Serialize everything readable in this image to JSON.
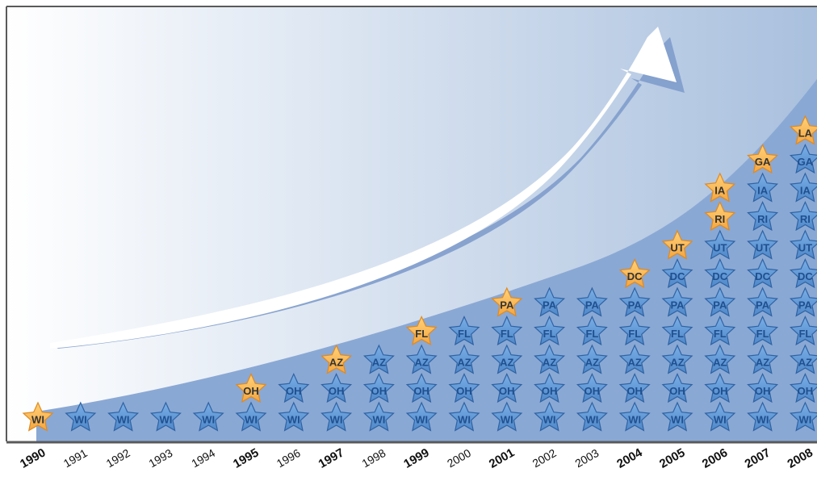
{
  "chart_data": {
    "type": "table",
    "x": [
      "1990",
      "1991",
      "1992",
      "1993",
      "1994",
      "1995",
      "1996",
      "1997",
      "1998",
      "1999",
      "2000",
      "2001",
      "2002",
      "2003",
      "2004",
      "2005",
      "2006",
      "2007",
      "2008"
    ],
    "bold_years": [
      "1990",
      "1995",
      "1997",
      "1999",
      "2001",
      "2004",
      "2005",
      "2006",
      "2007",
      "2008"
    ],
    "additions": [
      {
        "year": "1990",
        "state": "WI"
      },
      {
        "year": "1995",
        "state": "OH"
      },
      {
        "year": "1997",
        "state": "AZ"
      },
      {
        "year": "1999",
        "state": "FL"
      },
      {
        "year": "2001",
        "state": "PA"
      },
      {
        "year": "2004",
        "state": "DC"
      },
      {
        "year": "2005",
        "state": "UT"
      },
      {
        "year": "2006",
        "state": "RI"
      },
      {
        "year": "2006",
        "state": "IA"
      },
      {
        "year": "2007",
        "state": "GA"
      },
      {
        "year": "2008",
        "state": "LA"
      }
    ],
    "values": [
      1,
      1,
      1,
      1,
      1,
      2,
      2,
      3,
      3,
      4,
      4,
      5,
      5,
      5,
      6,
      7,
      9,
      10,
      11
    ]
  },
  "colors": {
    "background_left": "#ffffff",
    "background_right": "#a9c0de",
    "area": "#8aa8d4",
    "arrow": "#ffffff",
    "arrow_shadow": "#7f9ccb",
    "star_existing": "#4f88c9",
    "star_existing_stroke": "#2f63a3",
    "label_existing": "#1f4f8f",
    "star_new": "#f4a640",
    "star_new_stroke": "#e08a20",
    "label_new": "#333333",
    "frame": "#5a5a5a"
  }
}
